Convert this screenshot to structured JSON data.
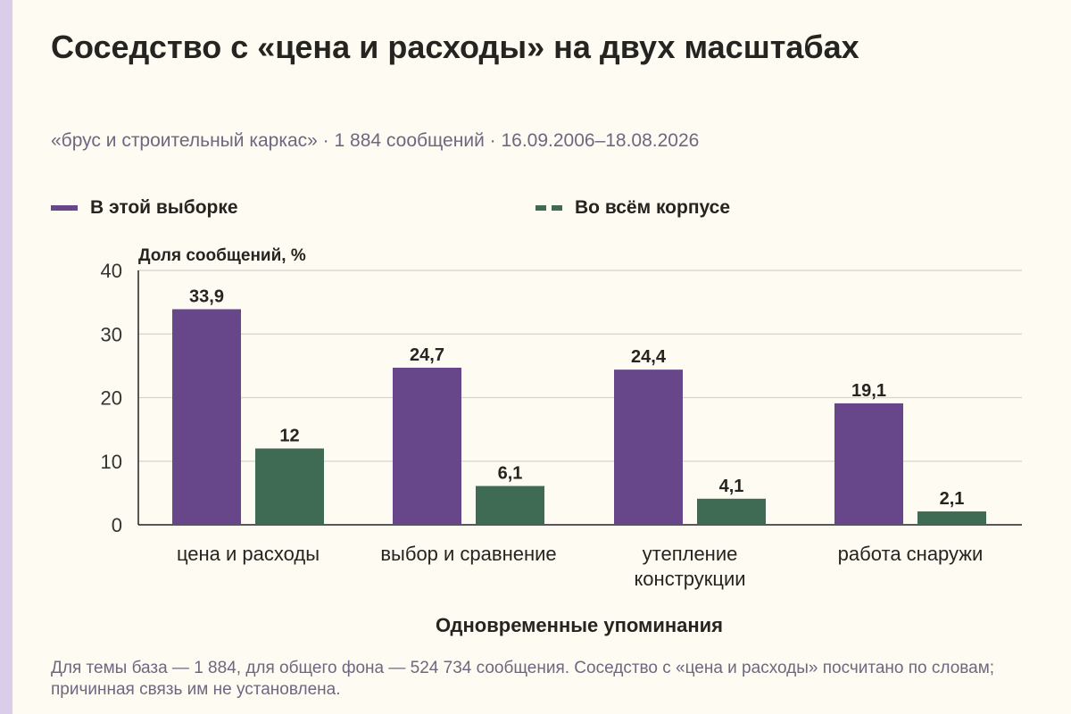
{
  "title": "Соседство с «цена и расходы» на двух масштабах",
  "subtitle": "«брус и строительный каркас» · 1 884 сообщений · 16.09.2006–18.08.2026",
  "footnote": "Для темы база — 1 884, для общего фона — 524 734 сообщения. Соседство с «цена и расходы» посчитано по словам; причинная связь им не установлена.",
  "colors": {
    "background": "#fdfbf2",
    "series_sample": "#67478a",
    "series_corpus": "#3f6b55",
    "grid": "#d6d4cc",
    "axis": "#222222"
  },
  "chart_data": {
    "type": "bar",
    "ylabel": "Доля сообщений, %",
    "xlabel": "Одновременные упоминания",
    "ylim": [
      0,
      40
    ],
    "yticks": [
      0,
      10,
      20,
      30,
      40
    ],
    "grid": true,
    "legend_position": "top-left",
    "categories": [
      [
        "цена и расходы"
      ],
      [
        "выбор и сравнение"
      ],
      [
        "утепление",
        "конструкции"
      ],
      [
        "работа снаружи"
      ]
    ],
    "series": [
      {
        "name": "В этой выборке",
        "values": [
          33.9,
          24.7,
          24.4,
          19.1
        ],
        "labels": [
          "33,9",
          "24,7",
          "24,4",
          "19,1"
        ]
      },
      {
        "name": "Во всём корпусе",
        "values": [
          12,
          6.1,
          4.1,
          2.1
        ],
        "labels": [
          "12",
          "6,1",
          "4,1",
          "2,1"
        ]
      }
    ]
  }
}
